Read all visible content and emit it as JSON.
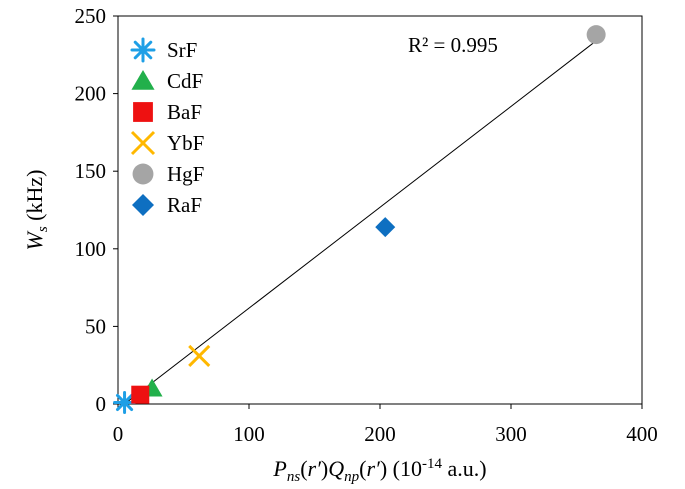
{
  "chart_data": {
    "type": "scatter",
    "title": "",
    "xlabel": {
      "parts": [
        {
          "text": "P",
          "style": "italic"
        },
        {
          "text": "ns",
          "style": "italic-sub"
        },
        {
          "text": "(",
          "style": "normal"
        },
        {
          "text": "r′",
          "style": "italic"
        },
        {
          "text": ")",
          "style": "normal"
        },
        {
          "text": "Q",
          "style": "italic"
        },
        {
          "text": "np",
          "style": "italic-sub"
        },
        {
          "text": "(",
          "style": "normal"
        },
        {
          "text": "r′",
          "style": "italic"
        },
        {
          "text": ") (10",
          "style": "normal"
        },
        {
          "text": "-14",
          "style": "sup"
        },
        {
          "text": " a.u.)",
          "style": "normal"
        }
      ]
    },
    "ylabel": {
      "parts": [
        {
          "text": "W",
          "style": "italic"
        },
        {
          "text": "s",
          "style": "italic-sub"
        },
        {
          "text": " (kHz)",
          "style": "normal"
        }
      ]
    },
    "xlim": [
      0,
      400
    ],
    "ylim": [
      0,
      250
    ],
    "xticks": [
      "0",
      "100",
      "200",
      "300",
      "400"
    ],
    "yticks": [
      "0",
      "50",
      "100",
      "150",
      "200",
      "250"
    ],
    "grid": false,
    "legend_position": "top-left",
    "series": [
      {
        "name": "SrF",
        "marker": "asterisk",
        "color": "#1E9FE6",
        "x": [
          5
        ],
        "y": [
          1
        ]
      },
      {
        "name": "CdF",
        "marker": "triangle",
        "color": "#22B04B",
        "x": [
          26
        ],
        "y": [
          10
        ]
      },
      {
        "name": "BaF",
        "marker": "square",
        "color": "#EE1111",
        "x": [
          17
        ],
        "y": [
          6
        ]
      },
      {
        "name": "YbF",
        "marker": "x",
        "color": "#FFB800",
        "x": [
          62
        ],
        "y": [
          31
        ]
      },
      {
        "name": "HgF",
        "marker": "circle",
        "color": "#A5A5A5",
        "x": [
          365
        ],
        "y": [
          238
        ]
      },
      {
        "name": "RaF",
        "marker": "diamond",
        "color": "#0E6FC1",
        "x": [
          204
        ],
        "y": [
          114
        ]
      }
    ],
    "trendline": {
      "type": "linear",
      "color": "#000000",
      "x": [
        5,
        365
      ],
      "y": [
        0,
        234
      ]
    },
    "annotation": "R² = 0.995"
  }
}
